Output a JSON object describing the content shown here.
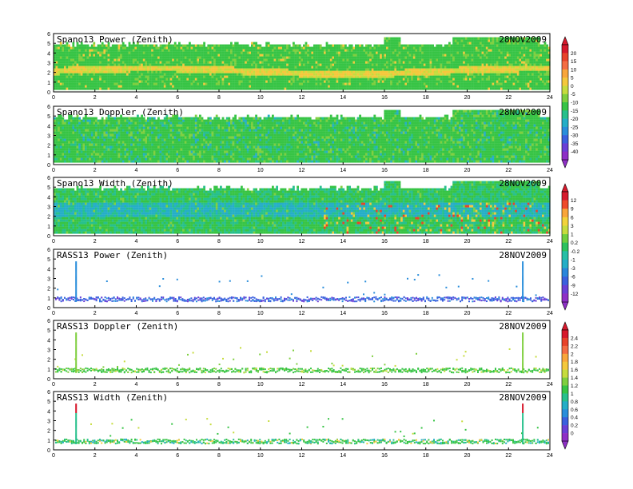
{
  "chart_data": [
    {
      "type": "heatmap",
      "title": "Spano13 Power (Zenith)",
      "date": "28NOV2009",
      "xlim": [
        0,
        24
      ],
      "ylim": [
        0,
        6
      ],
      "xticks": [
        "0",
        "2",
        "4",
        "6",
        "8",
        "10",
        "12",
        "14",
        "16",
        "18",
        "20",
        "22",
        "24"
      ],
      "yticks": [
        "0",
        "1",
        "2",
        "3",
        "4",
        "5",
        "6"
      ],
      "colorbar": {
        "group": "power",
        "labels": [
          "20",
          "15",
          "10",
          "5",
          "0",
          "-5",
          "-10",
          "-15",
          "-20",
          "-25",
          "-30",
          "-35",
          "-40"
        ]
      },
      "description_values": {
        "dominant": "green",
        "layer_near_2km": "orange/yellow",
        "gaps": [
          [
            15.9,
            16.7
          ],
          [
            17.6,
            18.2
          ]
        ]
      }
    },
    {
      "type": "heatmap",
      "title": "Spano13 Doppler (Zenith)",
      "date": "28NOV2009",
      "xlim": [
        0,
        24
      ],
      "ylim": [
        0,
        6
      ],
      "xticks": [
        "0",
        "2",
        "4",
        "6",
        "8",
        "10",
        "12",
        "14",
        "16",
        "18",
        "20",
        "22",
        "24"
      ],
      "yticks": [
        "0",
        "1",
        "2",
        "3",
        "4",
        "5",
        "6"
      ],
      "colorbar": {
        "group": "power"
      }
    },
    {
      "type": "heatmap",
      "title": "Spano13 Width (Zenith)",
      "date": "28NOV2009",
      "xlim": [
        0,
        24
      ],
      "ylim": [
        0,
        6
      ],
      "xticks": [
        "0",
        "2",
        "4",
        "6",
        "8",
        "10",
        "12",
        "14",
        "16",
        "18",
        "20",
        "22",
        "24"
      ],
      "yticks": [
        "0",
        "1",
        "2",
        "3",
        "4",
        "5",
        "6"
      ],
      "colorbar": {
        "group": "width",
        "labels": [
          "12",
          "9",
          "6",
          "3",
          "1",
          "0.2",
          "-0.2",
          "-1",
          "-3",
          "-6",
          "-9",
          "-12"
        ]
      }
    },
    {
      "type": "scatter",
      "title": "RASS13 Power (Zenith)",
      "date": "28NOV2009",
      "xlim": [
        0,
        24
      ],
      "ylim": [
        0,
        6
      ],
      "xticks": [
        "0",
        "2",
        "4",
        "6",
        "8",
        "10",
        "12",
        "14",
        "16",
        "18",
        "20",
        "22",
        "24"
      ],
      "yticks": [
        "0",
        "1",
        "2",
        "3",
        "4",
        "5",
        "6"
      ],
      "colorbar": {
        "group": "width"
      }
    },
    {
      "type": "scatter",
      "title": "RASS13 Doppler (Zenith)",
      "date": "28NOV2009",
      "xlim": [
        0,
        24
      ],
      "ylim": [
        0,
        6
      ],
      "xticks": [
        "0",
        "2",
        "4",
        "6",
        "8",
        "10",
        "12",
        "14",
        "16",
        "18",
        "20",
        "22",
        "24"
      ],
      "yticks": [
        "0",
        "1",
        "2",
        "3",
        "4",
        "5",
        "6"
      ],
      "colorbar": {
        "group": "rass",
        "labels": [
          "2.4",
          "2.2",
          "2",
          "1.8",
          "1.6",
          "1.4",
          "1.2",
          "1",
          "0.8",
          "0.6",
          "0.4",
          "0.2",
          "0"
        ]
      }
    },
    {
      "type": "scatter",
      "title": "RASS13 Width (Zenith)",
      "date": "28NOV2009",
      "xlim": [
        0,
        24
      ],
      "ylim": [
        0,
        6
      ],
      "xticks": [
        "0",
        "2",
        "4",
        "6",
        "8",
        "10",
        "12",
        "14",
        "16",
        "18",
        "20",
        "22",
        "24"
      ],
      "yticks": [
        "0",
        "1",
        "2",
        "3",
        "4",
        "5",
        "6"
      ],
      "colorbar": {
        "group": "rass"
      }
    }
  ],
  "colorbars": [
    {
      "id": "power",
      "labels": [
        "20",
        "15",
        "10",
        "5",
        "0",
        "-5",
        "-10",
        "-15",
        "-20",
        "-25",
        "-30",
        "-35",
        "-40"
      ],
      "colors": [
        "#d7192c",
        "#e8432a",
        "#f46d43",
        "#f9a63b",
        "#f4c83c",
        "#c6dc3e",
        "#7fcf3f",
        "#37c445",
        "#27c08c",
        "#25aec7",
        "#2a8edb",
        "#3b60de",
        "#6a3fd6",
        "#8e2fc6"
      ]
    },
    {
      "id": "width",
      "labels": [
        "12",
        "9",
        "6",
        "3",
        "1",
        "0.2",
        "-0.2",
        "-1",
        "-3",
        "-6",
        "-9",
        "-12"
      ],
      "colors": [
        "#d7192c",
        "#ef4b2c",
        "#f9a63b",
        "#f2d33b",
        "#c6dc3e",
        "#6fcf3f",
        "#2cc25e",
        "#27bfa6",
        "#25aec7",
        "#2a86db",
        "#3b60de",
        "#6a3fd6",
        "#8e2fc6"
      ]
    },
    {
      "id": "rass",
      "labels": [
        "2.4",
        "2.2",
        "2",
        "1.8",
        "1.6",
        "1.4",
        "1.2",
        "1",
        "0.8",
        "0.6",
        "0.4",
        "0.2",
        "0"
      ],
      "colors": [
        "#d7192c",
        "#e8432a",
        "#f46d43",
        "#f9a63b",
        "#f4c83c",
        "#c6dc3e",
        "#7fcf3f",
        "#37c445",
        "#27c08c",
        "#25aec7",
        "#2a8edb",
        "#3b60de",
        "#6a3fd6",
        "#8e2fc6"
      ]
    }
  ]
}
